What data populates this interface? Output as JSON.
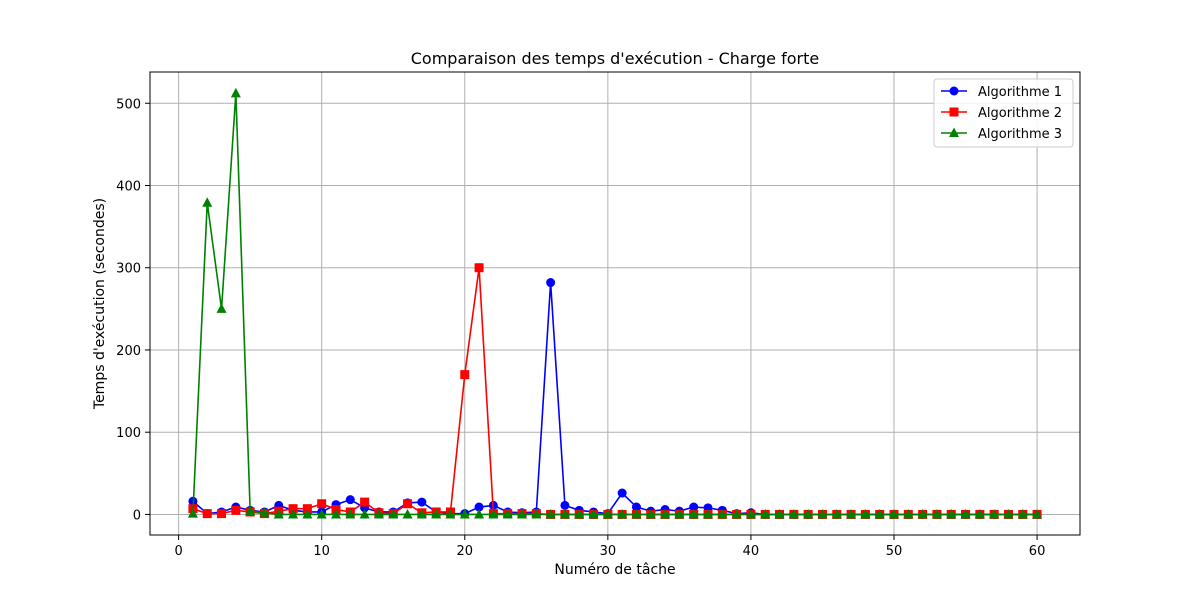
{
  "chart_data": {
    "type": "line",
    "title": "Comparaison des temps d'exécution - Charge forte",
    "xlabel": "Numéro de tâche",
    "ylabel": "Temps d'exécution (secondes)",
    "xlim": [
      -2,
      63
    ],
    "ylim": [
      -25,
      538
    ],
    "xticks": [
      0,
      10,
      20,
      30,
      40,
      50,
      60
    ],
    "yticks": [
      0,
      100,
      200,
      300,
      400,
      500
    ],
    "grid": true,
    "legend_position": "top-right",
    "x": [
      1,
      2,
      3,
      4,
      5,
      6,
      7,
      8,
      9,
      10,
      11,
      12,
      13,
      14,
      15,
      16,
      17,
      18,
      19,
      20,
      21,
      22,
      23,
      24,
      25,
      26,
      27,
      28,
      29,
      30,
      31,
      32,
      33,
      34,
      35,
      36,
      37,
      38,
      39,
      40,
      41,
      42,
      43,
      44,
      45,
      46,
      47,
      48,
      49,
      50,
      51,
      52,
      53,
      54,
      55,
      56,
      57,
      58,
      59,
      60
    ],
    "series": [
      {
        "name": "Algorithme 1",
        "color": "#0000ff",
        "marker": "circle",
        "values": [
          16,
          1,
          3,
          9,
          5,
          3,
          11,
          5,
          3,
          3,
          12,
          18,
          8,
          3,
          3,
          14,
          15,
          3,
          1,
          1,
          9,
          11,
          3,
          2,
          3,
          282,
          11,
          5,
          3,
          1,
          26,
          9,
          4,
          6,
          4,
          9,
          8,
          5,
          1,
          2,
          0,
          0,
          0,
          0,
          0,
          0,
          0,
          0,
          0,
          0,
          0,
          0,
          0,
          0,
          0,
          0,
          0,
          0,
          0,
          0
        ]
      },
      {
        "name": "Algorithme 2",
        "color": "#ff0000",
        "marker": "square",
        "values": [
          7,
          1,
          1,
          5,
          3,
          1,
          4,
          7,
          7,
          13,
          6,
          3,
          15,
          2,
          1,
          13,
          2,
          3,
          3,
          170,
          300,
          1,
          1,
          1,
          1,
          0,
          0,
          0,
          0,
          0,
          0,
          0,
          0,
          0,
          0,
          0,
          0,
          0,
          0,
          0,
          0,
          0,
          0,
          0,
          0,
          0,
          0,
          0,
          0,
          0,
          0,
          0,
          0,
          0,
          0,
          0,
          0,
          0,
          0,
          0
        ]
      },
      {
        "name": "Algorithme 3",
        "color": "#008000",
        "marker": "triangle",
        "values": [
          1,
          379,
          250,
          512,
          4,
          2,
          0,
          0,
          0,
          0,
          0,
          0,
          0,
          0,
          0,
          0,
          0,
          0,
          0,
          0,
          0,
          0,
          0,
          0,
          0,
          0,
          0,
          0,
          0,
          0,
          0,
          0,
          0,
          0,
          0,
          0,
          0,
          0,
          0,
          0,
          0,
          0,
          0,
          0,
          0,
          0,
          0,
          0,
          0,
          0,
          0,
          0,
          0,
          0,
          0,
          0,
          0,
          0,
          0,
          0
        ]
      }
    ]
  }
}
